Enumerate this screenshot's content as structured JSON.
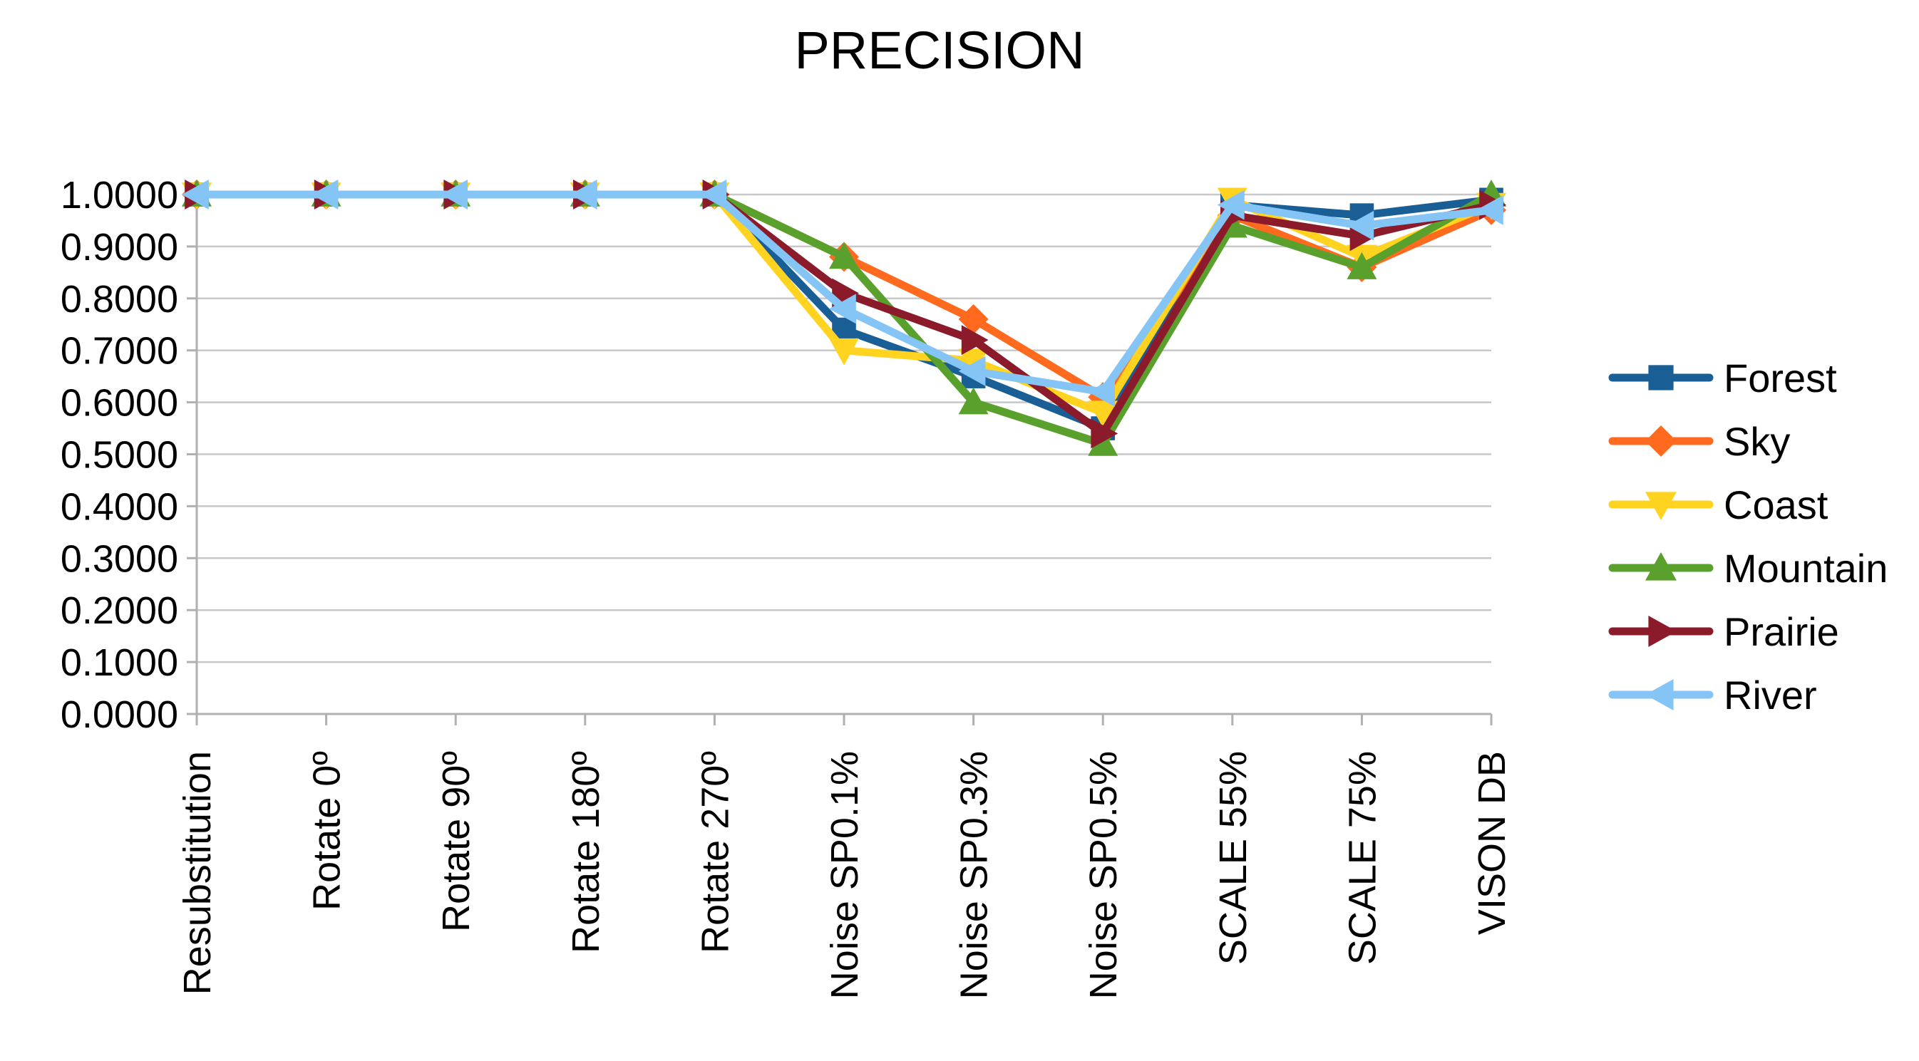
{
  "chart_data": {
    "type": "line",
    "title": "PRECISION",
    "xlabel": "",
    "ylabel": "",
    "ylim": [
      0,
      1
    ],
    "y_ticks": [
      "0.0000",
      "0.1000",
      "0.2000",
      "0.3000",
      "0.4000",
      "0.5000",
      "0.6000",
      "0.7000",
      "0.8000",
      "0.9000",
      "1.0000"
    ],
    "categories": [
      "Resubstitution",
      "Rotate 0º",
      "Rotate 90º",
      "Rotate 180º",
      "Rotate 270º",
      "Noise SP0.1%",
      "Noise SP0.3%",
      "Noise SP0.5%",
      "SCALE 55%",
      "SCALE 75%",
      "VISON DB"
    ],
    "grid": true,
    "legend_position": "right",
    "series": [
      {
        "name": "Forest",
        "color": "#1a5e96",
        "marker": "square",
        "values": [
          1.0,
          1.0,
          1.0,
          1.0,
          1.0,
          0.74,
          0.65,
          0.55,
          0.98,
          0.96,
          0.99
        ]
      },
      {
        "name": "Sky",
        "color": "#ff6a1f",
        "marker": "diamond",
        "values": [
          1.0,
          1.0,
          1.0,
          1.0,
          1.0,
          0.88,
          0.76,
          0.61,
          0.96,
          0.86,
          0.97
        ]
      },
      {
        "name": "Coast",
        "color": "#ffd320",
        "marker": "triangle-down",
        "values": [
          1.0,
          1.0,
          1.0,
          1.0,
          1.0,
          0.7,
          0.68,
          0.58,
          0.99,
          0.88,
          0.98
        ]
      },
      {
        "name": "Mountain",
        "color": "#5aa02c",
        "marker": "triangle-up",
        "values": [
          1.0,
          1.0,
          1.0,
          1.0,
          1.0,
          0.88,
          0.6,
          0.52,
          0.94,
          0.86,
          1.0
        ]
      },
      {
        "name": "Prairie",
        "color": "#8b1a2b",
        "marker": "triangle-right",
        "values": [
          1.0,
          1.0,
          1.0,
          1.0,
          1.0,
          0.81,
          0.72,
          0.54,
          0.96,
          0.92,
          0.98
        ]
      },
      {
        "name": "River",
        "color": "#85c5f5",
        "marker": "triangle-left",
        "values": [
          1.0,
          1.0,
          1.0,
          1.0,
          1.0,
          0.78,
          0.66,
          0.62,
          0.98,
          0.94,
          0.97
        ]
      }
    ]
  }
}
